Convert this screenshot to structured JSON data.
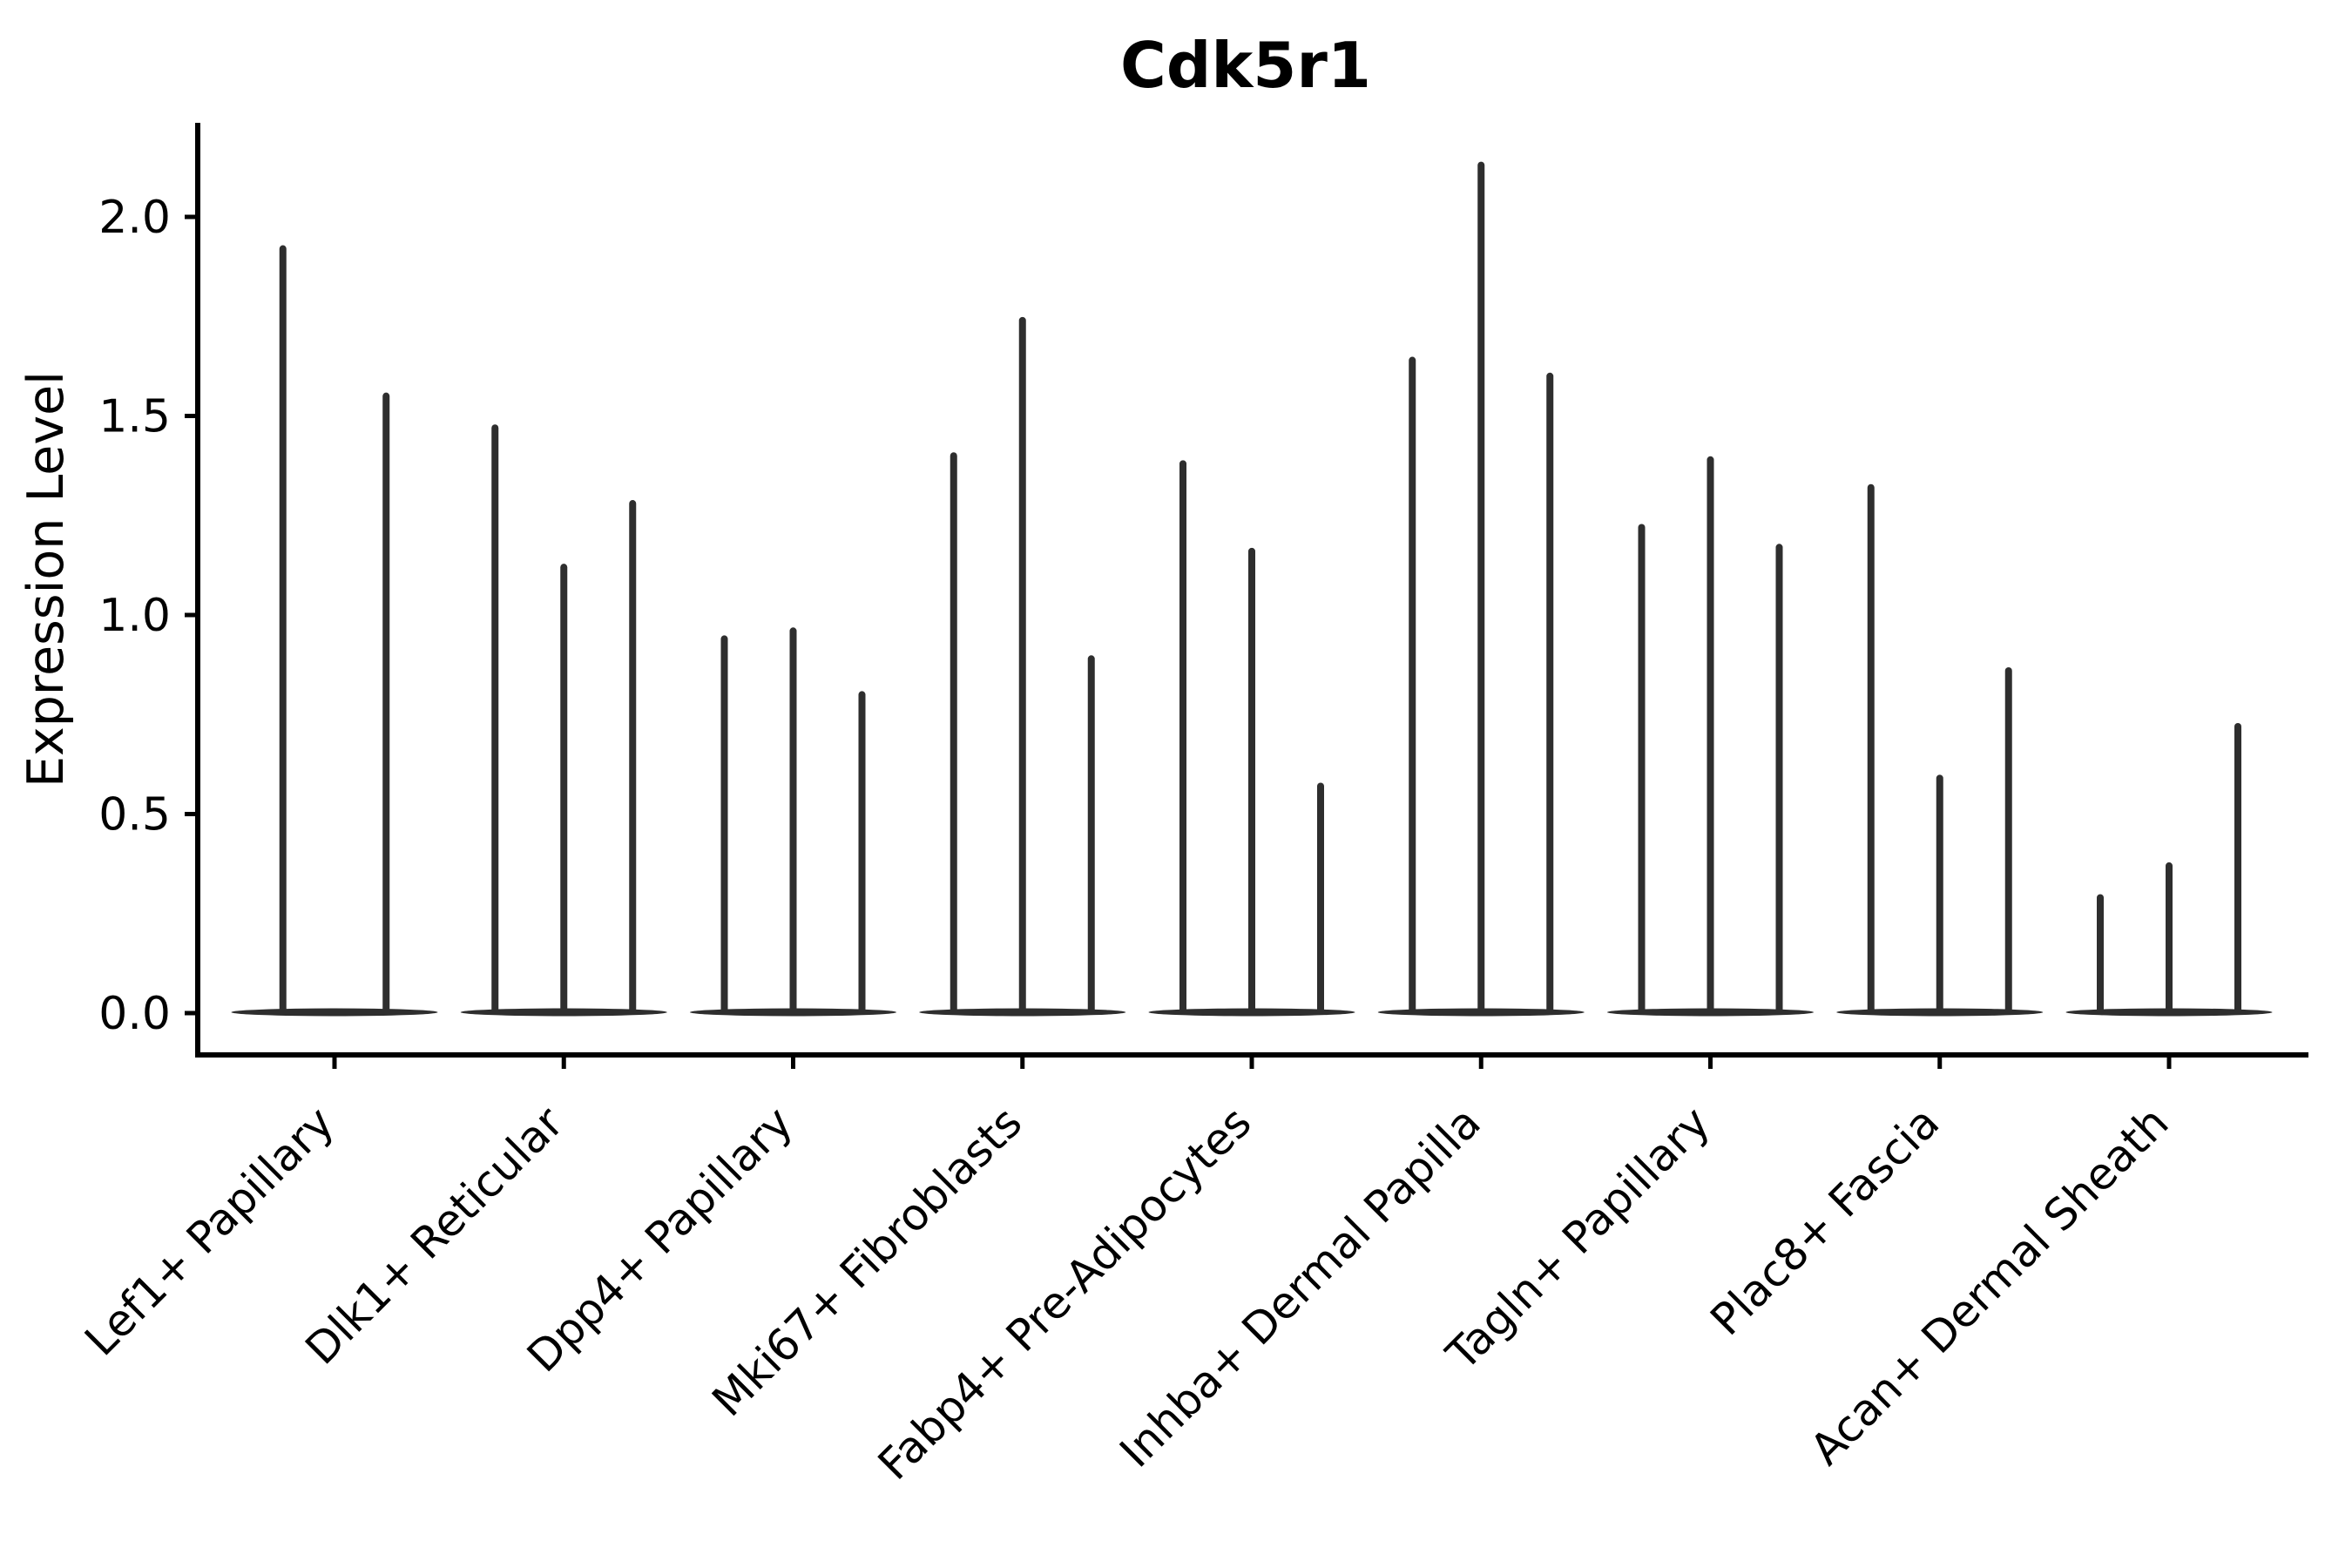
{
  "page": {
    "background": "#ffffff"
  },
  "chart_data": {
    "type": "violin",
    "title": "Cdk5r1",
    "ylabel": "Expression Level",
    "xlabel": "",
    "ylim": [
      -0.1,
      2.24
    ],
    "yticks": [
      0.0,
      0.5,
      1.0,
      1.5,
      2.0
    ],
    "ytick_labels": [
      "0.0",
      "0.5",
      "1.0",
      "1.5",
      "2.0"
    ],
    "grid": false,
    "legend": "none",
    "violin_color": "#2e2e2e",
    "axis_color": "#000000",
    "categories": [
      "Lef1+ Papillary",
      "Dlk1+ Reticular",
      "Dpp4+ Papillary",
      "Mki67+ Fibroblasts",
      "Fabp4+ Pre-Adipocytes",
      "Inhba+ Dermal Papilla",
      "Tagln+ Papillary",
      "Plac8+ Fascia",
      "Acan+ Dermal Sheath"
    ],
    "groups": [
      {
        "label": "Lef1+ Papillary",
        "violin_peaks": [
          1.92,
          1.55
        ]
      },
      {
        "label": "Dlk1+ Reticular",
        "violin_peaks": [
          1.47,
          1.12,
          1.28
        ]
      },
      {
        "label": "Dpp4+ Papillary",
        "violin_peaks": [
          0.94,
          0.96,
          0.8
        ]
      },
      {
        "label": "Mki67+ Fibroblasts",
        "violin_peaks": [
          1.4,
          1.74,
          0.89
        ]
      },
      {
        "label": "Fabp4+ Pre-Adipocytes",
        "violin_peaks": [
          1.38,
          1.16,
          0.57
        ]
      },
      {
        "label": "Inhba+ Dermal Papilla",
        "violin_peaks": [
          1.64,
          2.13,
          1.6
        ]
      },
      {
        "label": "Tagln+ Papillary",
        "violin_peaks": [
          1.22,
          1.39,
          1.17
        ]
      },
      {
        "label": "Plac8+ Fascia",
        "violin_peaks": [
          1.32,
          0.59,
          0.86
        ]
      },
      {
        "label": "Acan+ Dermal Sheath",
        "violin_peaks": [
          0.29,
          0.37,
          0.72
        ]
      }
    ]
  }
}
